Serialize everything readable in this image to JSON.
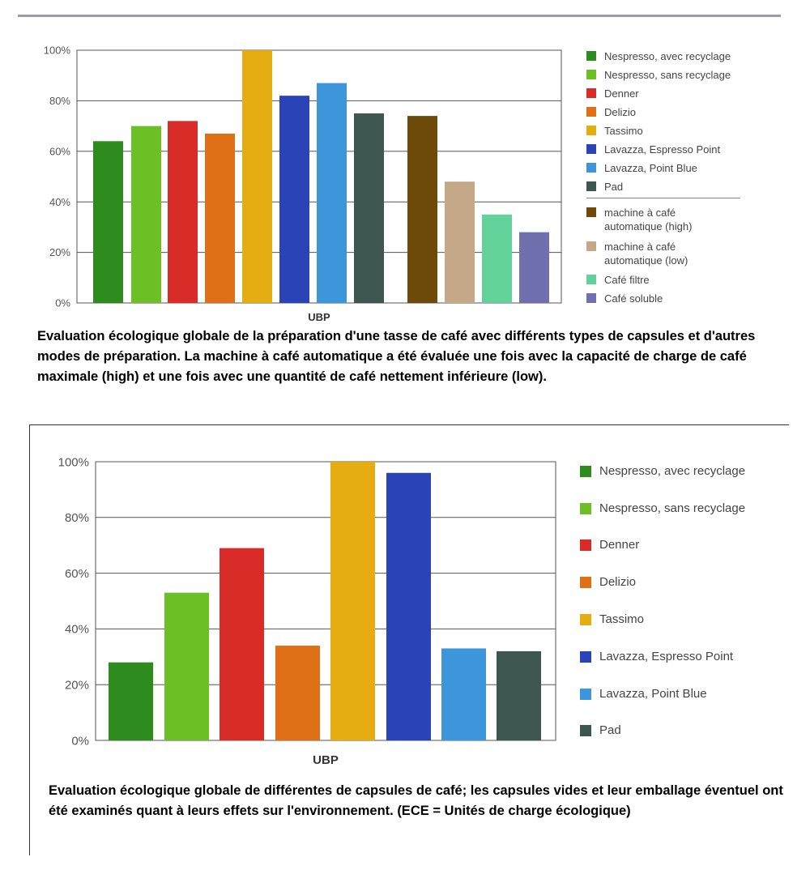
{
  "charts": [
    {
      "caption": "Evaluation écologique globale de la préparation d'une tasse de café avec différents types de capsules et d'autres modes de préparation. La machine à café automatique a été évaluée une fois avec la capacité de charge de café maximale (high) et une fois avec une quantité de café nettement inférieure (low).",
      "legend_items": [
        {
          "label": "Nespresso, avec recyclage",
          "color": "#2e8b1e"
        },
        {
          "label": "Nespresso, sans recyclage",
          "color": "#6cbf24"
        },
        {
          "label": "Denner",
          "color": "#d92b27"
        },
        {
          "label": "Delizio",
          "color": "#e07018"
        },
        {
          "label": "Tassimo",
          "color": "#e6ad12"
        },
        {
          "label": "Lavazza, Espresso Point",
          "color": "#2a44b8"
        },
        {
          "label": "Lavazza, Point Blue",
          "color": "#3d95da"
        },
        {
          "label": "Pad",
          "color": "#3d5650"
        },
        {
          "label": "machine à café automatique (high)",
          "color": "#6e4a0a"
        },
        {
          "label": "machine à café automatique (low)",
          "color": "#c4a888"
        },
        {
          "label": "Café filtre",
          "color": "#62d29a"
        },
        {
          "label": "Café soluble",
          "color": "#7070ae"
        }
      ]
    },
    {
      "caption": "Evaluation écologique globale de différentes de capsules de café; les capsules vides et leur emballage éventuel ont été examinés quant à leurs effets sur l'environnement. (ECE = Unités de charge écologique)",
      "legend_items": [
        {
          "label": "Nespresso, avec recyclage",
          "color": "#2e8b1e"
        },
        {
          "label": "Nespresso, sans recyclage",
          "color": "#6cbf24"
        },
        {
          "label": "Denner",
          "color": "#d92b27"
        },
        {
          "label": "Delizio",
          "color": "#e07018"
        },
        {
          "label": "Tassimo",
          "color": "#e6ad12"
        },
        {
          "label": "Lavazza, Espresso Point",
          "color": "#2a44b8"
        },
        {
          "label": "Lavazza, Point Blue",
          "color": "#3d95da"
        },
        {
          "label": "Pad",
          "color": "#3d5650"
        }
      ]
    }
  ],
  "chart_data": [
    {
      "type": "bar",
      "xlabel": "UBP",
      "ylabel": "",
      "ylim": [
        0,
        100
      ],
      "yticks": [
        "0%",
        "20%",
        "40%",
        "60%",
        "80%",
        "100%"
      ],
      "grid": true,
      "legend": "right",
      "series": [
        {
          "name": "Nespresso, avec recyclage",
          "value": 64,
          "color": "#2e8b1e"
        },
        {
          "name": "Nespresso, sans recyclage",
          "value": 70,
          "color": "#6cbf24"
        },
        {
          "name": "Denner",
          "value": 72,
          "color": "#d92b27"
        },
        {
          "name": "Delizio",
          "value": 67,
          "color": "#e07018"
        },
        {
          "name": "Tassimo",
          "value": 100,
          "color": "#e6ad12"
        },
        {
          "name": "Lavazza, Espresso Point",
          "value": 82,
          "color": "#2a44b8"
        },
        {
          "name": "Lavazza, Point Blue",
          "value": 87,
          "color": "#3d95da"
        },
        {
          "name": "Pad",
          "value": 75,
          "color": "#3d5650"
        },
        {
          "name": "machine à café automatique (high)",
          "value": 74,
          "color": "#6e4a0a"
        },
        {
          "name": "machine à café automatique (low)",
          "value": 48,
          "color": "#c4a888"
        },
        {
          "name": "Café filtre",
          "value": 35,
          "color": "#62d29a"
        },
        {
          "name": "Café soluble",
          "value": 28,
          "color": "#7070ae"
        }
      ]
    },
    {
      "type": "bar",
      "xlabel": "UBP",
      "ylabel": "",
      "ylim": [
        0,
        100
      ],
      "yticks": [
        "0%",
        "20%",
        "40%",
        "60%",
        "80%",
        "100%"
      ],
      "grid": true,
      "legend": "right",
      "series": [
        {
          "name": "Nespresso, avec recyclage",
          "value": 28,
          "color": "#2e8b1e"
        },
        {
          "name": "Nespresso, sans recyclage",
          "value": 53,
          "color": "#6cbf24"
        },
        {
          "name": "Denner",
          "value": 69,
          "color": "#d92b27"
        },
        {
          "name": "Delizio",
          "value": 34,
          "color": "#e07018"
        },
        {
          "name": "Tassimo",
          "value": 100,
          "color": "#e6ad12"
        },
        {
          "name": "Lavazza, Espresso Point",
          "value": 96,
          "color": "#2a44b8"
        },
        {
          "name": "Lavazza, Point Blue",
          "value": 33,
          "color": "#3d95da"
        },
        {
          "name": "Pad",
          "value": 32,
          "color": "#3d5650"
        }
      ]
    }
  ]
}
